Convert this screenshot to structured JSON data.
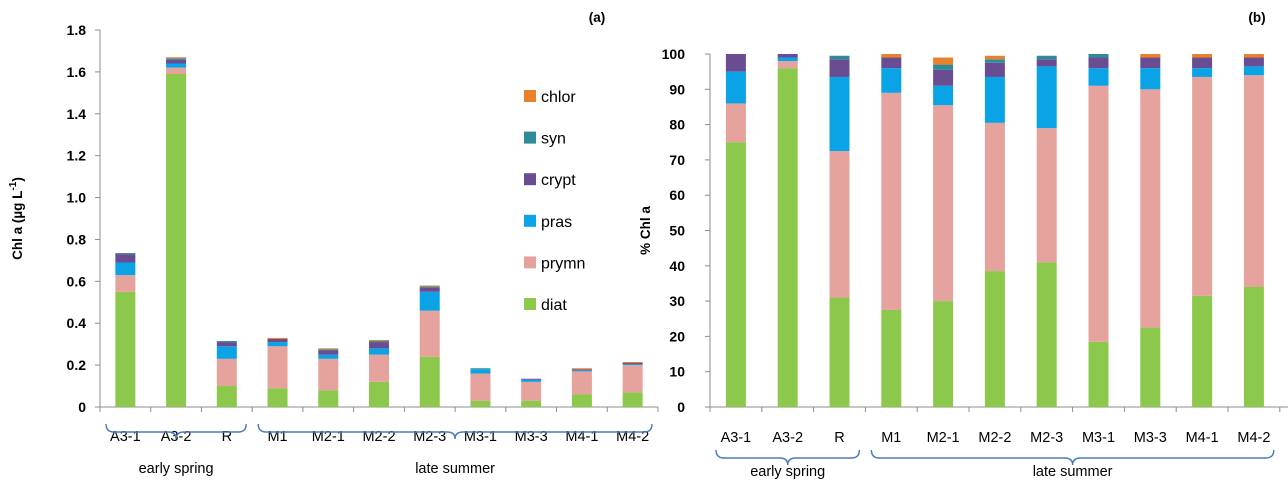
{
  "colors": {
    "chlor": "#e8822a",
    "syn": "#2e8b9a",
    "crypt": "#6a4c93",
    "pras": "#0aa3e6",
    "prymn": "#e6a29c",
    "diat": "#8cc84b"
  },
  "chart_data": [
    {
      "type": "bar",
      "stacked": true,
      "panel_label": "(a)",
      "ylabel": "Chl a (µg L-1)",
      "ylabel_parts": [
        "Chl a (µg L",
        "-1",
        ")"
      ],
      "ylim": [
        0,
        1.8
      ],
      "yticks": [
        "0",
        "0.2",
        "0.4",
        "0.6",
        "0.8",
        "1.0",
        "1.2",
        "1.4",
        "1.6",
        "1.8"
      ],
      "categories": [
        "A3-1",
        "A3-2",
        "R",
        "M1",
        "M2-1",
        "M2-2",
        "M2-3",
        "M3-1",
        "M3-3",
        "M4-1",
        "M4-2"
      ],
      "groups": [
        {
          "label": "early spring",
          "from": 0,
          "to": 2
        },
        {
          "label": "late summer",
          "from": 3,
          "to": 10
        }
      ],
      "legend": [
        "chlor",
        "syn",
        "crypt",
        "pras",
        "prymn",
        "diat"
      ],
      "series": [
        {
          "name": "diat",
          "values": [
            0.55,
            1.59,
            0.1,
            0.09,
            0.08,
            0.12,
            0.24,
            0.03,
            0.03,
            0.06,
            0.07
          ]
        },
        {
          "name": "prymn",
          "values": [
            0.08,
            0.03,
            0.13,
            0.2,
            0.15,
            0.13,
            0.22,
            0.13,
            0.09,
            0.11,
            0.13
          ]
        },
        {
          "name": "pras",
          "values": [
            0.06,
            0.02,
            0.06,
            0.02,
            0.02,
            0.03,
            0.09,
            0.02,
            0.01,
            0.005,
            0.005
          ]
        },
        {
          "name": "crypt",
          "values": [
            0.04,
            0.02,
            0.02,
            0.015,
            0.02,
            0.03,
            0.02,
            0.0,
            0.005,
            0.005,
            0.005
          ]
        },
        {
          "name": "syn",
          "values": [
            0.005,
            0.005,
            0.005,
            0.0,
            0.005,
            0.005,
            0.005,
            0.005,
            0.0,
            0.0,
            0.0
          ]
        },
        {
          "name": "chlor",
          "values": [
            0.0,
            0.005,
            0.0,
            0.005,
            0.005,
            0.005,
            0.005,
            0.0,
            0.0,
            0.005,
            0.005
          ]
        }
      ]
    },
    {
      "type": "bar",
      "stacked": true,
      "panel_label": "(b)",
      "ylabel": "% Chl a",
      "ylim": [
        0,
        100
      ],
      "yticks": [
        "0",
        "10",
        "20",
        "30",
        "40",
        "50",
        "60",
        "70",
        "80",
        "90",
        "100"
      ],
      "categories": [
        "A3-1",
        "A3-2",
        "R",
        "M1",
        "M2-1",
        "M2-2",
        "M2-3",
        "M3-1",
        "M3-3",
        "M4-1",
        "M4-2"
      ],
      "groups": [
        {
          "label": "early spring",
          "from": 0,
          "to": 2
        },
        {
          "label": "late summer",
          "from": 3,
          "to": 10
        }
      ],
      "series": [
        {
          "name": "diat",
          "values": [
            75,
            96,
            31,
            27.5,
            30,
            38.5,
            41,
            18.5,
            22.5,
            31.5,
            34
          ]
        },
        {
          "name": "prymn",
          "values": [
            11,
            2,
            41.5,
            61.5,
            55.5,
            42,
            38,
            72.5,
            67.5,
            62,
            60
          ]
        },
        {
          "name": "pras",
          "values": [
            9,
            1,
            21,
            7,
            5.5,
            13,
            17.5,
            5,
            6,
            2.5,
            2.5
          ]
        },
        {
          "name": "crypt",
          "values": [
            5,
            1,
            5,
            3,
            4.5,
            4,
            2,
            3,
            3,
            3,
            2.5
          ]
        },
        {
          "name": "syn",
          "values": [
            0,
            0,
            1,
            0,
            1.5,
            1,
            1,
            1,
            0,
            0,
            0
          ]
        },
        {
          "name": "chlor",
          "values": [
            0,
            0,
            0,
            1,
            2,
            1,
            0,
            0,
            1,
            1,
            1
          ]
        }
      ]
    }
  ]
}
